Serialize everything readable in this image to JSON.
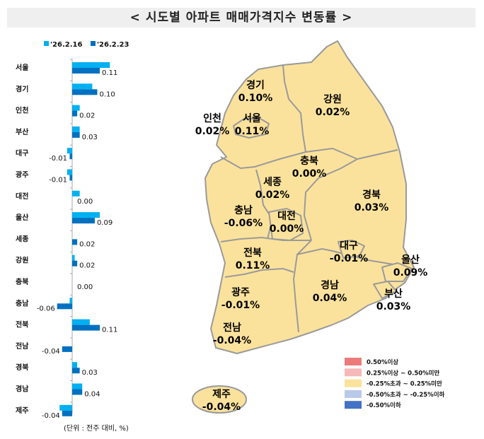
{
  "title": "< 시도별 아파트 매매가격지수 변동률 >",
  "chart_data": {
    "type": "bar",
    "orientation": "horizontal",
    "categories": [
      "서울",
      "경기",
      "인천",
      "부산",
      "대구",
      "광주",
      "대전",
      "울산",
      "세종",
      "강원",
      "충북",
      "충남",
      "전북",
      "전남",
      "경북",
      "경남",
      "제주"
    ],
    "series": [
      {
        "name": "'26.2.16",
        "color": "#00B0F0",
        "values": [
          0.15,
          0.08,
          0.03,
          0.03,
          -0.02,
          -0.02,
          0.03,
          0.11,
          0.0,
          0.01,
          0.0,
          -0.01,
          0.07,
          0.0,
          0.02,
          0.04,
          -0.05
        ]
      },
      {
        "name": "'26.2.23",
        "color": "#0070C0",
        "values": [
          0.11,
          0.1,
          0.02,
          0.03,
          -0.01,
          -0.01,
          0.0,
          0.09,
          0.02,
          0.02,
          0.0,
          -0.06,
          0.11,
          -0.04,
          0.03,
          0.04,
          -0.04
        ]
      }
    ],
    "data_labels": [
      "0.11",
      "0.10",
      "0.02",
      "0.03",
      "-0.01",
      "-0.01",
      "0.00",
      "0.09",
      "0.02",
      "0.02",
      "0.00",
      "-0.06",
      "0.11",
      "-0.04",
      "0.03",
      "0.04",
      "-0.04"
    ],
    "unit_note": "(단위 : 전주 대비, %)",
    "legend_position": "top"
  },
  "map": {
    "fill": "#FBE29C",
    "stroke": "#9A9A9A",
    "regions": [
      {
        "name": "경기",
        "value": "0.10%"
      },
      {
        "name": "강원",
        "value": "0.02%"
      },
      {
        "name": "인천",
        "value": "0.02%"
      },
      {
        "name": "서울",
        "value": "0.11%"
      },
      {
        "name": "충북",
        "value": "0.00%"
      },
      {
        "name": "세종",
        "value": "0.02%"
      },
      {
        "name": "경북",
        "value": "0.03%"
      },
      {
        "name": "충남",
        "value": "-0.06%"
      },
      {
        "name": "대전",
        "value": "0.00%"
      },
      {
        "name": "대구",
        "value": "-0.01%"
      },
      {
        "name": "울산",
        "value": "0.09%"
      },
      {
        "name": "전북",
        "value": "0.11%"
      },
      {
        "name": "광주",
        "value": "-0.01%"
      },
      {
        "name": "경남",
        "value": "0.04%"
      },
      {
        "name": "부산",
        "value": "0.03%"
      },
      {
        "name": "전남",
        "value": "-0.04%"
      },
      {
        "name": "제주",
        "value": "-0.04%"
      }
    ],
    "legend": [
      {
        "label": "0.50%이상",
        "color": "#EE7B7B"
      },
      {
        "label": "0.25%이상 ~ 0.50%미만",
        "color": "#F6B8B8"
      },
      {
        "label": "-0.25%초과 ~ 0.25%미만",
        "color": "#FBE29C"
      },
      {
        "label": "-0.50%초과 ~ -0.25%이하",
        "color": "#B9C9E8"
      },
      {
        "label": "-0.50%이하",
        "color": "#4472C4"
      }
    ]
  }
}
